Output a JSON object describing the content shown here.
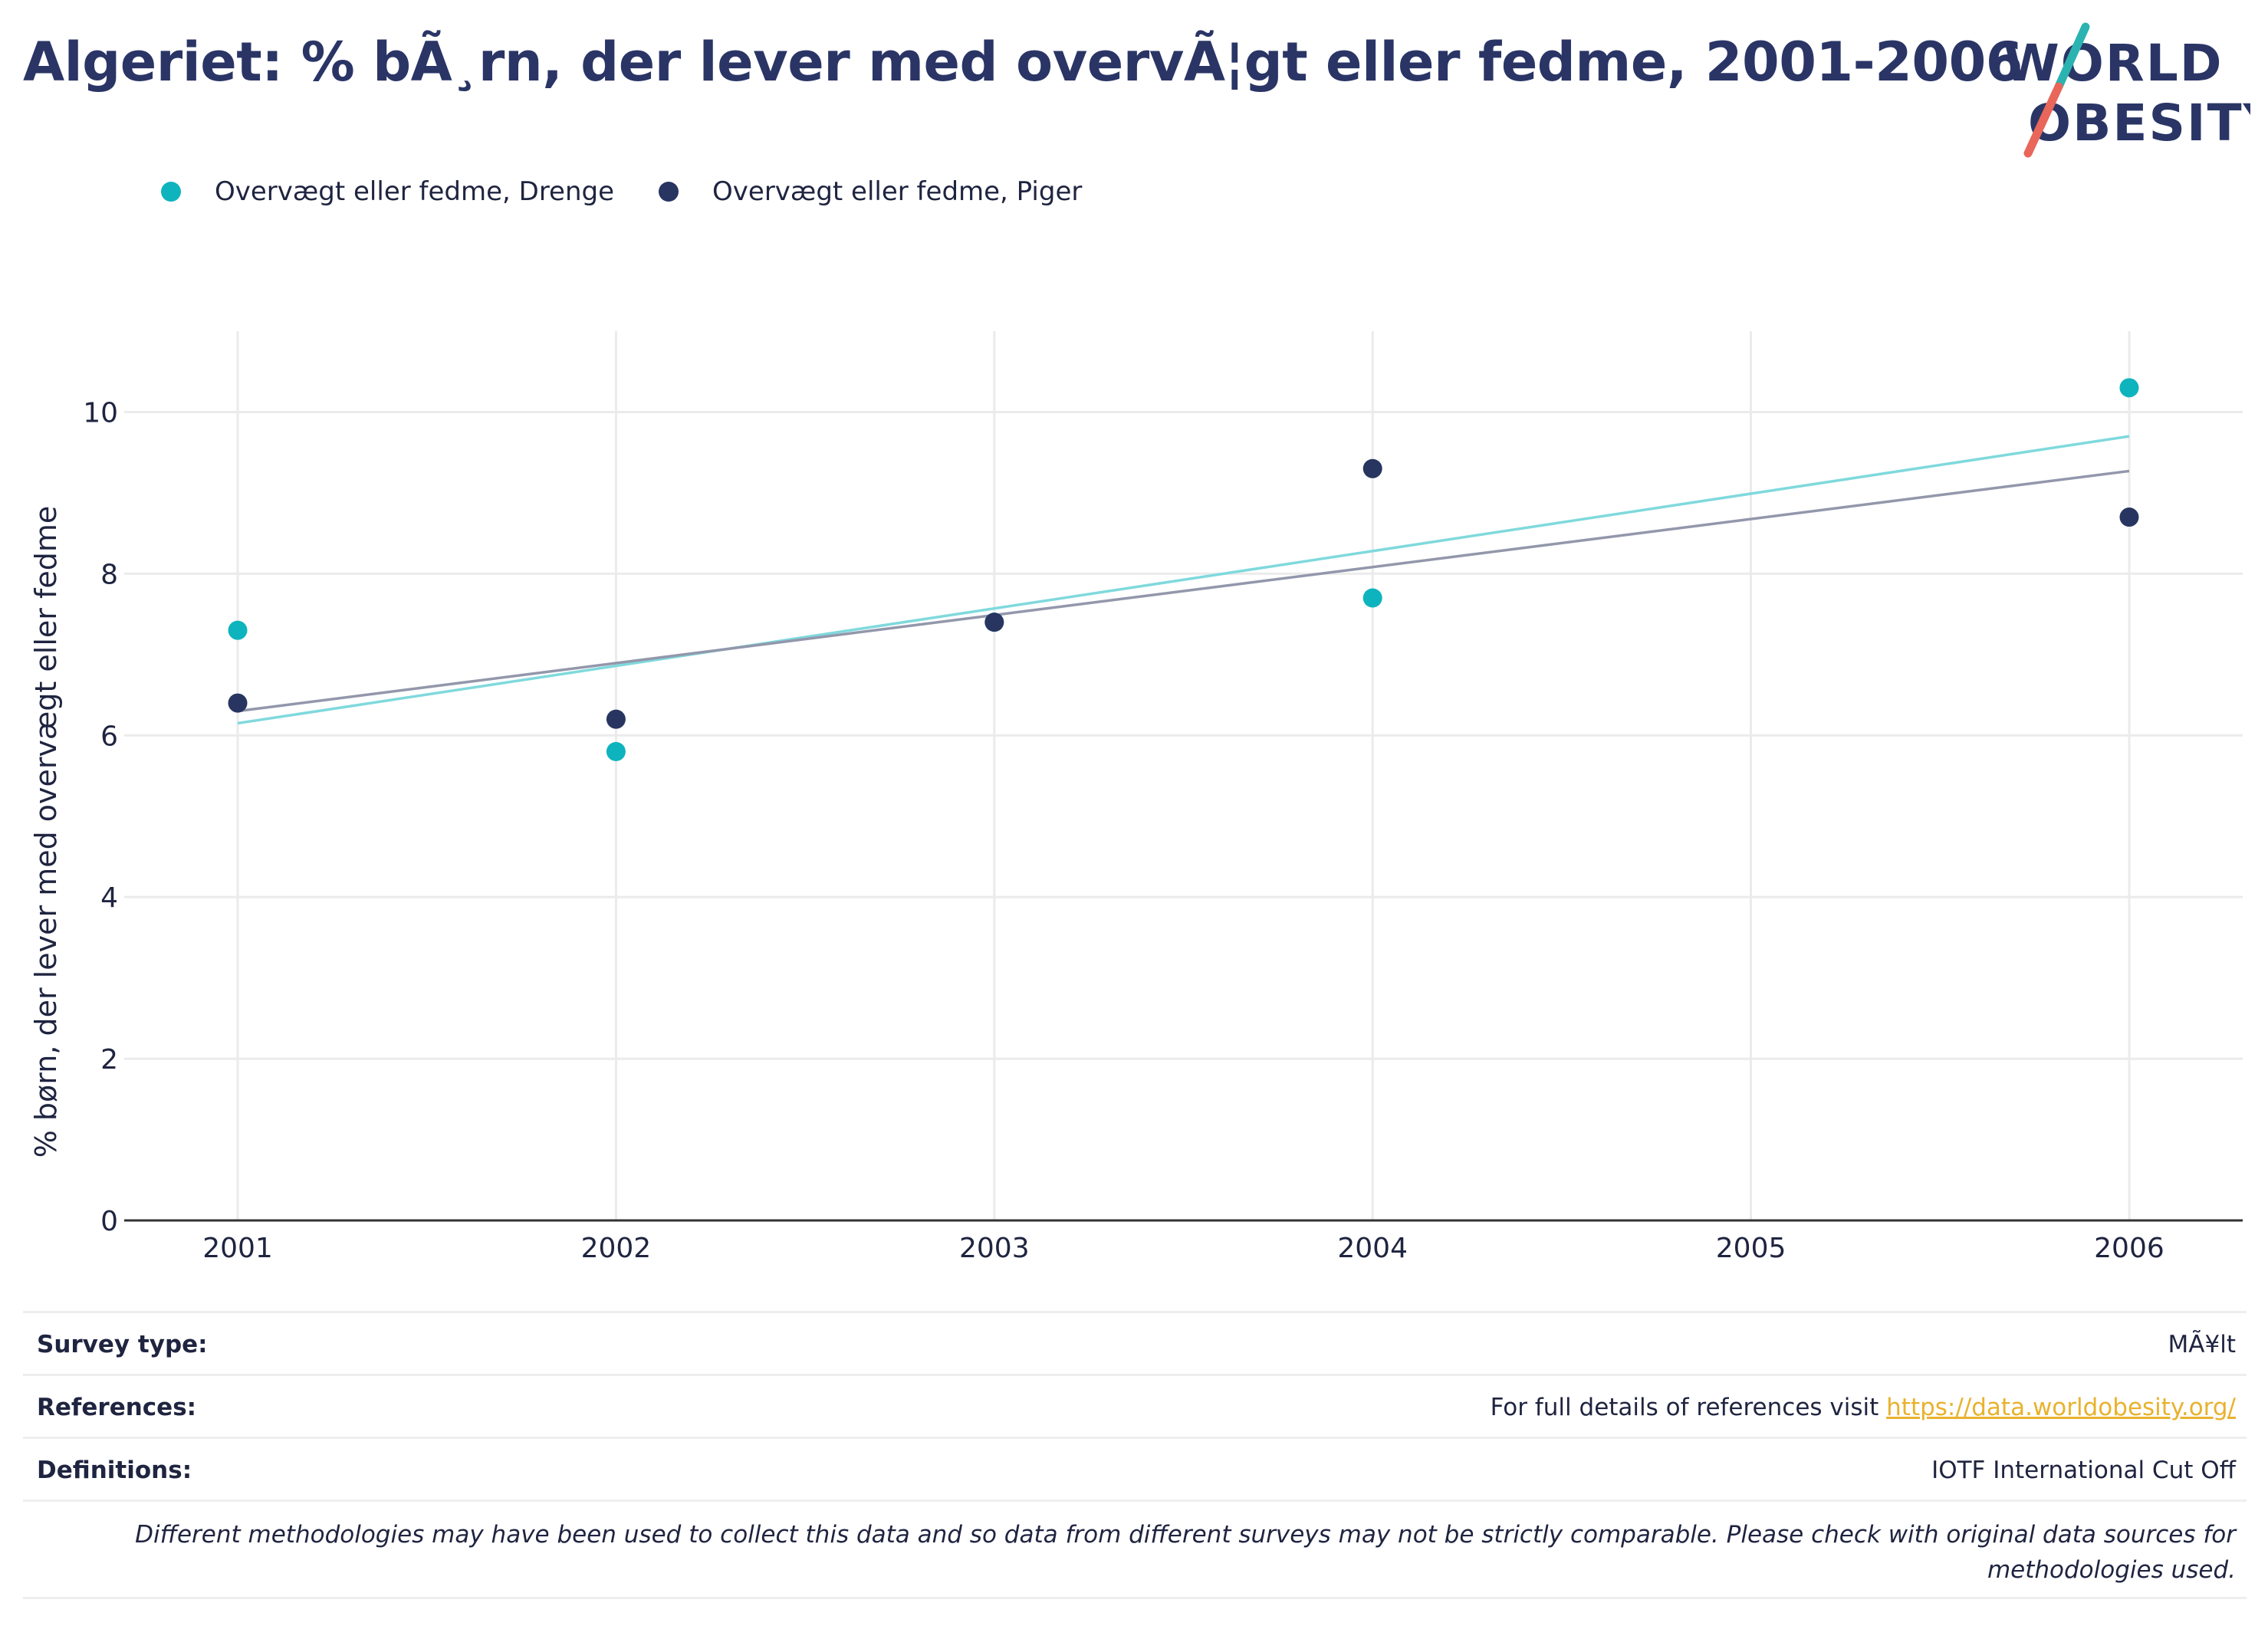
{
  "title": "Algeriet: % bÃ¸rn, der lever med overvÃ¦gt eller fedme, 2001-2006",
  "logo": {
    "line1": "WORLD",
    "line2": "OBESITY",
    "colors": {
      "text": "#2a3566",
      "teal": "#2bb3b1",
      "coral": "#e8665a"
    }
  },
  "chart_data": {
    "type": "scatter",
    "x": [
      2001,
      2002,
      2003,
      2004,
      2005,
      2006
    ],
    "xlim": [
      2000.7,
      2006.3
    ],
    "ylim": [
      0,
      11
    ],
    "yticks": [
      0,
      2,
      4,
      6,
      8,
      10
    ],
    "ylabel": "% børn, der lever med overvægt eller fedme",
    "grid": true,
    "legend_position": "top-left",
    "series": [
      {
        "name": "Overvægt eller fedme, Drenge",
        "color": "#0db4be",
        "trend_color": "#7fd9dc",
        "points": [
          [
            2001,
            7.3
          ],
          [
            2002,
            5.8
          ],
          [
            2003,
            7.4
          ],
          [
            2004,
            7.7
          ],
          [
            2006,
            10.3
          ]
        ],
        "trend": [
          [
            2001,
            6.15
          ],
          [
            2006,
            9.7
          ]
        ]
      },
      {
        "name": "Overvægt eller fedme, Piger",
        "color": "#273560",
        "trend_color": "#9397ab",
        "points": [
          [
            2001,
            6.4
          ],
          [
            2002,
            6.2
          ],
          [
            2003,
            7.4
          ],
          [
            2004,
            9.3
          ],
          [
            2006,
            8.7
          ]
        ],
        "trend": [
          [
            2001,
            6.3
          ],
          [
            2006,
            9.27
          ]
        ]
      }
    ]
  },
  "info": {
    "survey_type_label": "Survey type:",
    "survey_type_value": "MÃ¥lt",
    "references_label": "References:",
    "references_text": "For full details of references visit ",
    "references_link": "https://data.worldobesity.org/",
    "definitions_label": "Definitions:",
    "definitions_value": "IOTF International Cut Off",
    "note": "Different methodologies may have been used to collect this data and so data from different surveys may not be strictly comparable. Please check with original data sources for methodologies used."
  }
}
